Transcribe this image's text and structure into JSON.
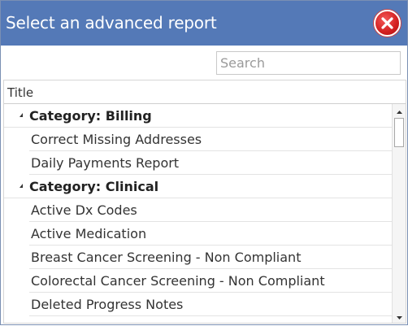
{
  "dialog": {
    "title": "Select an advanced report",
    "close_icon": "close-x-icon"
  },
  "search": {
    "placeholder": "Search",
    "value": ""
  },
  "grid": {
    "column_header": "Title",
    "rows": [
      {
        "type": "category",
        "label": "Category: Billing"
      },
      {
        "type": "item",
        "label": "Correct Missing Addresses"
      },
      {
        "type": "item",
        "label": "Daily Payments Report"
      },
      {
        "type": "category",
        "label": "Category: Clinical"
      },
      {
        "type": "item",
        "label": "Active Dx Codes"
      },
      {
        "type": "item",
        "label": "Active Medication"
      },
      {
        "type": "item",
        "label": "Breast Cancer Screening - Non Compliant"
      },
      {
        "type": "item",
        "label": "Colorectal Cancer Screening - Non Compliant"
      },
      {
        "type": "item",
        "label": "Deleted Progress Notes"
      }
    ]
  },
  "colors": {
    "titlebar": "#5479b7",
    "close_button": "#d21f1f"
  }
}
